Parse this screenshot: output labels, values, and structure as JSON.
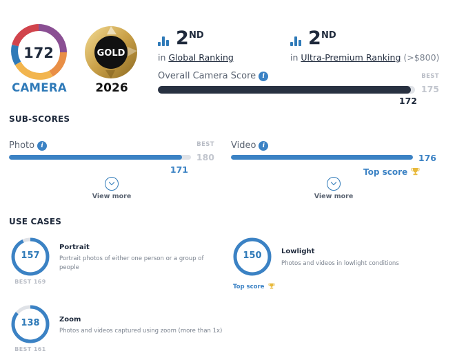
{
  "badges": {
    "camera_score": "172",
    "camera_label": "CAMERA",
    "gold_label": "GOLD",
    "gold_year": "2026"
  },
  "rankings": [
    {
      "rank": "2",
      "suffix": "ND",
      "prefix": "in",
      "link": "Global Ranking",
      "extra": ""
    },
    {
      "rank": "2",
      "suffix": "ND",
      "prefix": "in",
      "link": "Ultra-Premium Ranking",
      "extra": "(>$800)"
    }
  ],
  "overall": {
    "title": "Overall Camera Score",
    "info_icon": "i",
    "best_label": "BEST",
    "best_value": "175",
    "score": "172",
    "fraction": 0.983,
    "color": "#283141"
  },
  "sub_scores": {
    "title": "SUB-SCORES",
    "items": [
      {
        "name": "Photo",
        "info_icon": "i",
        "best_label": "BEST",
        "best_value": "180",
        "score": "171",
        "fraction": 0.95,
        "view_more": "View more",
        "top_score": ""
      },
      {
        "name": "Video",
        "info_icon": "i",
        "best_label": "",
        "best_value": "",
        "score": "176",
        "fraction": 1.0,
        "view_more": "View more",
        "top_score": "Top score"
      }
    ]
  },
  "use_cases": {
    "title": "USE CASES",
    "items": [
      {
        "name": "Portrait",
        "value": "157",
        "fraction": 0.93,
        "desc_lines": [
          "Portrait photos of either one person or a group of",
          "people"
        ],
        "best": "BEST 169",
        "top_score": ""
      },
      {
        "name": "Lowlight",
        "value": "150",
        "fraction": 1.0,
        "desc_lines": [
          "Photos and videos in lowlight conditions"
        ],
        "best": "",
        "top_score": "Top score"
      },
      {
        "name": "Zoom",
        "value": "138",
        "fraction": 0.86,
        "desc_lines": [
          "Photos and videos captured using zoom (more than 1x)"
        ],
        "best": "BEST 161",
        "top_score": ""
      }
    ]
  },
  "colors": {
    "accent": "#2f7ab8",
    "bar_blue": "#3b82c4",
    "overall_bar": "#283141",
    "track": "#dfe2e7",
    "trophy": "#e8b93b",
    "gold": "#c9a048"
  },
  "icons": {
    "rank": "bar-chart-icon",
    "info": "info-icon",
    "chevron": "chevron-down-icon",
    "trophy": "trophy-icon"
  }
}
